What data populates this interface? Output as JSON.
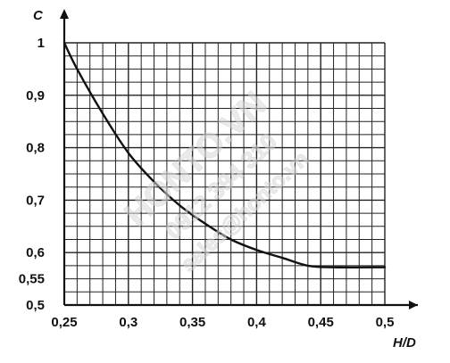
{
  "chart_data": {
    "type": "line",
    "xlabel": "H/D",
    "ylabel": "C",
    "xlim": [
      0.25,
      0.5
    ],
    "ylim": [
      0.5,
      1.0
    ],
    "grid": true,
    "x_ticks": [
      "0,25",
      "0,3",
      "0,35",
      "0,4",
      "0,45",
      "0,5"
    ],
    "y_ticks": [
      "0,5",
      "0,55",
      "0,6",
      "0,7",
      "0,8",
      "0,9",
      "1"
    ],
    "series": [
      {
        "points": [
          [
            0.25,
            1.0
          ],
          [
            0.26,
            0.95
          ],
          [
            0.28,
            0.865
          ],
          [
            0.3,
            0.79
          ],
          [
            0.32,
            0.735
          ],
          [
            0.34,
            0.69
          ],
          [
            0.36,
            0.655
          ],
          [
            0.38,
            0.625
          ],
          [
            0.4,
            0.605
          ],
          [
            0.42,
            0.59
          ],
          [
            0.44,
            0.575
          ],
          [
            0.46,
            0.572
          ],
          [
            0.5,
            0.572
          ]
        ]
      }
    ]
  },
  "colors": {
    "axis": "#111111",
    "grid": "#222222",
    "curve": "#111111",
    "watermark": "#d9d9d9"
  },
  "watermark": {
    "lines": [
      "HONTO.VN",
      "0912 394 310",
      "sales@honto.vn"
    ]
  }
}
